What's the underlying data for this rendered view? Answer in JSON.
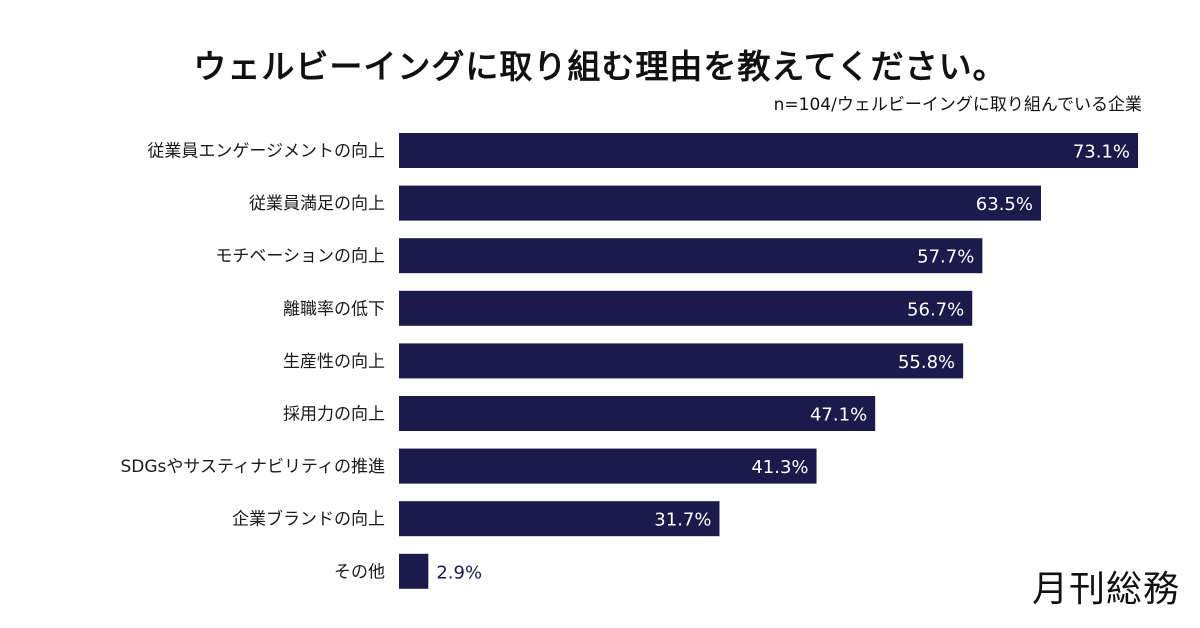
{
  "chart_data": {
    "type": "bar",
    "orientation": "horizontal",
    "title": "ウェルビーイングに取り組む理由を教えてください。",
    "subtitle": "n=104/ウェルビーイングに取り組んでいる企業",
    "categories": [
      "従業員エンゲージメントの向上",
      "従業員満足の向上",
      "モチベーションの向上",
      "離職率の低下",
      "生産性の向上",
      "採用力の向上",
      "SDGsやサスティナビリティの推進",
      "企業ブランドの向上",
      "その他"
    ],
    "values": [
      73.1,
      63.5,
      57.7,
      56.7,
      55.8,
      47.1,
      41.3,
      31.7,
      2.9
    ],
    "value_labels": [
      "73.1%",
      "63.5%",
      "57.7%",
      "56.7%",
      "55.8%",
      "47.1%",
      "41.3%",
      "31.7%",
      "2.9%"
    ],
    "unit": "%",
    "grid": false,
    "bar_color": "#1a1b4b"
  },
  "logo": "月刊総務"
}
